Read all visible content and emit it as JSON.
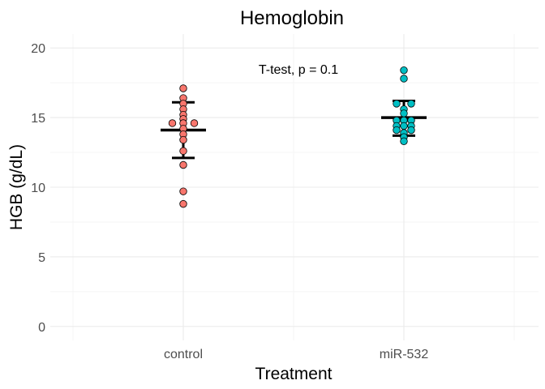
{
  "chart_data": {
    "type": "scatter",
    "title": "Hemoglobin",
    "xlabel": "Treatment",
    "ylabel": "HGB (g/dL)",
    "annotation": "T-test, p = 0.1",
    "categories": [
      "control",
      "miR-532"
    ],
    "ylim": [
      -1,
      21
    ],
    "yticks": [
      0,
      5,
      10,
      15,
      20
    ],
    "grid": true,
    "legend": "none",
    "colors": {
      "control": "#F8766D",
      "miR-532": "#00BFC4",
      "point_outline": "#000000",
      "summary": "#000000",
      "grid_major": "#EBEBEB",
      "grid_minor": "#F5F5F5",
      "text": "#4D4D4D"
    },
    "series": [
      {
        "category": "control",
        "mean": 14.1,
        "sd_low": 12.1,
        "sd_high": 16.1,
        "points": [
          {
            "dx": 0,
            "y": 17.1
          },
          {
            "dx": 0,
            "y": 16.4
          },
          {
            "dx": 0,
            "y": 16.0
          },
          {
            "dx": 0,
            "y": 15.6
          },
          {
            "dx": 0,
            "y": 15.2
          },
          {
            "dx": 0,
            "y": 14.9
          },
          {
            "dx": -1.5,
            "y": 14.6
          },
          {
            "dx": 0,
            "y": 14.6
          },
          {
            "dx": 1.5,
            "y": 14.6
          },
          {
            "dx": 0,
            "y": 14.2
          },
          {
            "dx": 0,
            "y": 13.8
          },
          {
            "dx": 0,
            "y": 13.4
          },
          {
            "dx": 0,
            "y": 12.6
          },
          {
            "dx": 0,
            "y": 11.6
          },
          {
            "dx": 0,
            "y": 9.7
          },
          {
            "dx": 0,
            "y": 8.8
          }
        ]
      },
      {
        "category": "miR-532",
        "mean": 15.0,
        "sd_low": 13.7,
        "sd_high": 16.2,
        "points": [
          {
            "dx": 0,
            "y": 18.4
          },
          {
            "dx": 0,
            "y": 17.8
          },
          {
            "dx": -1,
            "y": 16.0
          },
          {
            "dx": 1,
            "y": 16.0
          },
          {
            "dx": 0,
            "y": 15.6
          },
          {
            "dx": 0,
            "y": 15.3
          },
          {
            "dx": -1,
            "y": 14.8
          },
          {
            "dx": 0,
            "y": 14.8
          },
          {
            "dx": 1,
            "y": 14.8
          },
          {
            "dx": -1,
            "y": 14.4
          },
          {
            "dx": 0,
            "y": 14.4
          },
          {
            "dx": 1,
            "y": 14.4
          },
          {
            "dx": -1,
            "y": 14.1
          },
          {
            "dx": 1,
            "y": 14.1
          },
          {
            "dx": 0,
            "y": 13.9
          },
          {
            "dx": 0,
            "y": 13.6
          },
          {
            "dx": 0,
            "y": 13.3
          }
        ]
      }
    ]
  }
}
